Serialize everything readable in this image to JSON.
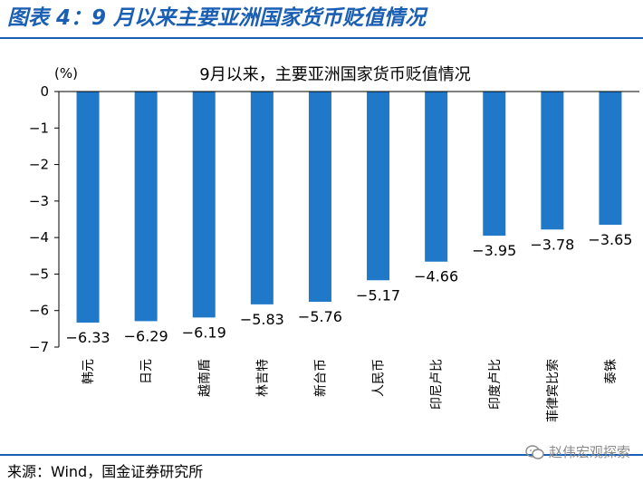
{
  "figure": {
    "title": "图表 4：9 月以来主要亚洲国家货币贬值情况",
    "source": "来源：Wind，国金证券研究所",
    "watermark": "赵伟宏观探索",
    "accent_color": "#1a5fb4"
  },
  "chart_data": {
    "type": "bar",
    "title": "9月以来，主要亚洲国家货币贬值情况",
    "ylabel": "(%)",
    "xlabel": "",
    "ylim": [
      -7,
      0
    ],
    "yticks": [
      0,
      -1,
      -2,
      -3,
      -4,
      -5,
      -6,
      -7
    ],
    "ytick_labels": [
      "0",
      "−1",
      "−2",
      "−3",
      "−4",
      "−5",
      "−6",
      "−7"
    ],
    "categories": [
      "韩元",
      "日元",
      "越南盾",
      "林吉特",
      "新台币",
      "人民币",
      "印尼卢比",
      "印度卢比",
      "菲律宾比索",
      "泰铢"
    ],
    "values": [
      -6.33,
      -6.29,
      -6.19,
      -5.83,
      -5.76,
      -5.17,
      -4.66,
      -3.95,
      -3.78,
      -3.65
    ],
    "value_labels": [
      "−6.33",
      "−6.29",
      "−6.19",
      "−5.83",
      "−5.76",
      "−5.17",
      "−4.66",
      "−3.95",
      "−3.78",
      "−3.65"
    ],
    "bar_color": "#1f78c8",
    "grid": false,
    "legend": "none"
  }
}
